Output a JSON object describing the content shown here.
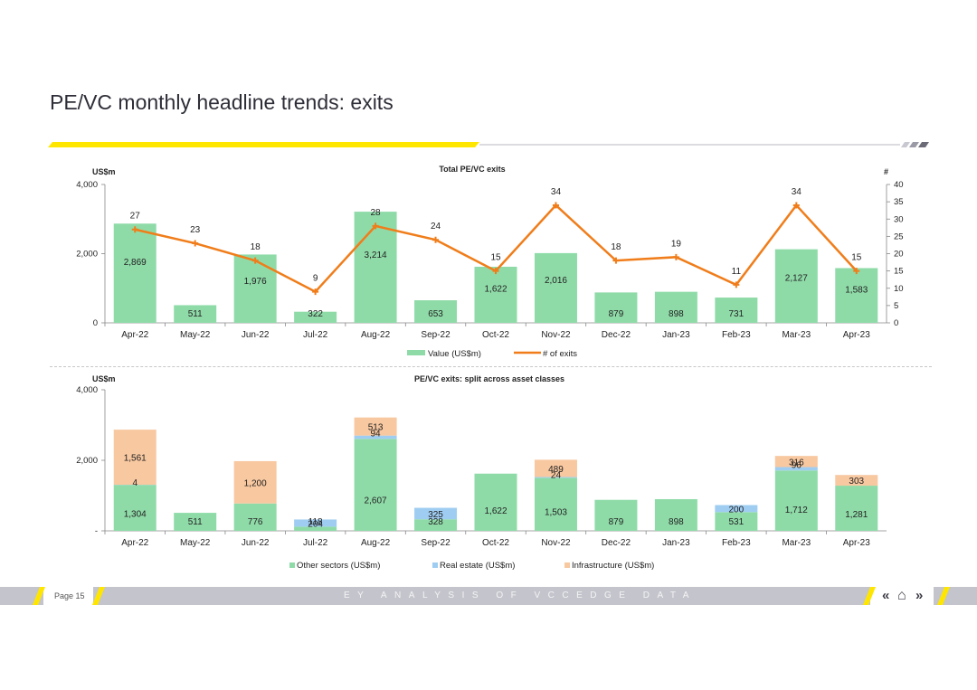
{
  "page": {
    "title": "PE/VC monthly headline trends: exits",
    "page_number": "Page 15",
    "footer_text": "EY ANALYSIS OF VCCEDGE DATA",
    "nav": {
      "prev": "«",
      "home": "⌂",
      "next": "»"
    },
    "colors": {
      "accent_yellow": "#ffe600",
      "footer_grey": "#c4c4cd",
      "dark": "#3a3a44"
    }
  },
  "chart_data": [
    {
      "type": "bar",
      "title": "Total PE/VC exits",
      "ylabel": "US$m",
      "y2label": "#",
      "ylim": [
        0,
        4000
      ],
      "yticks": [
        "0",
        "2,000",
        "4,000"
      ],
      "y2lim": [
        0,
        40
      ],
      "y2ticks": [
        "0",
        "5",
        "10",
        "15",
        "20",
        "25",
        "30",
        "35",
        "40"
      ],
      "categories": [
        "Apr-22",
        "May-22",
        "Jun-22",
        "Jul-22",
        "Aug-22",
        "Sep-22",
        "Oct-22",
        "Nov-22",
        "Dec-22",
        "Jan-23",
        "Feb-23",
        "Mar-23",
        "Apr-23"
      ],
      "series": [
        {
          "name": "Value (US$m)",
          "type": "bar",
          "color": "#8fdba8",
          "values": [
            2869,
            511,
            1976,
            322,
            3214,
            653,
            1622,
            2016,
            879,
            898,
            731,
            2127,
            1583
          ],
          "labels": [
            "2,869",
            "511",
            "1,976",
            "322",
            "3,214",
            "653",
            "1,622",
            "2,016",
            "879",
            "898",
            "731",
            "2,127",
            "1,583"
          ]
        },
        {
          "name": "# of exits",
          "type": "line",
          "color": "#f07d1a",
          "values": [
            27,
            23,
            18,
            9,
            28,
            24,
            15,
            34,
            18,
            19,
            11,
            34,
            15
          ]
        }
      ],
      "legend": "bottom",
      "grid": false
    },
    {
      "type": "bar",
      "stacked": true,
      "title": "PE/VC exits: split across asset classes",
      "ylabel": "US$m",
      "ylim": [
        0,
        4000
      ],
      "yticks": [
        "-",
        "2,000",
        "4,000"
      ],
      "categories": [
        "Apr-22",
        "May-22",
        "Jun-22",
        "Jul-22",
        "Aug-22",
        "Sep-22",
        "Oct-22",
        "Nov-22",
        "Dec-22",
        "Jan-23",
        "Feb-23",
        "Mar-23",
        "Apr-23"
      ],
      "series": [
        {
          "name": "Other sectors (US$m)",
          "color": "#8fdba8",
          "values": [
            1304,
            511,
            776,
            118,
            2607,
            328,
            1622,
            1503,
            879,
            898,
            531,
            1712,
            1281
          ]
        },
        {
          "name": "Real estate (US$m)",
          "color": "#9fcdf2",
          "values": [
            4,
            0,
            0,
            204,
            94,
            325,
            0,
            24,
            0,
            0,
            200,
            96,
            0
          ]
        },
        {
          "name": "Infrastructure (US$m)",
          "color": "#f8c8a0",
          "values": [
            1561,
            0,
            1200,
            0,
            513,
            0,
            0,
            489,
            0,
            0,
            0,
            316,
            303
          ]
        }
      ],
      "legend": "bottom",
      "grid": false
    }
  ]
}
